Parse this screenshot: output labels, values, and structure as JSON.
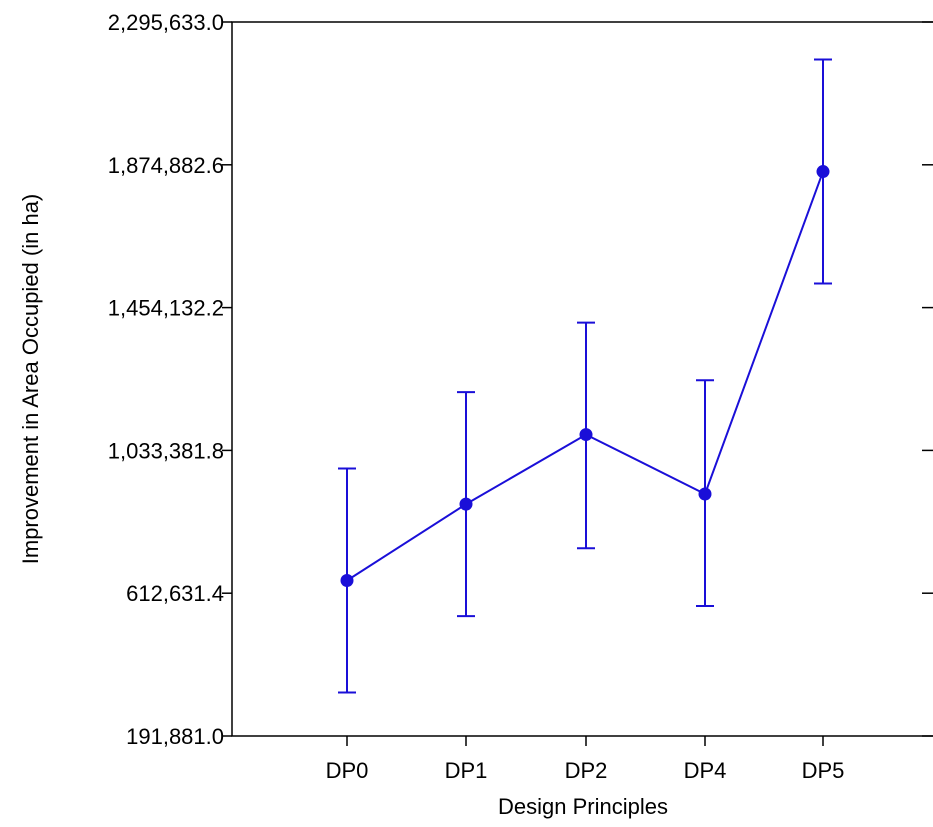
{
  "chart_data": {
    "type": "line",
    "xlabel": "Design Principles",
    "ylabel": "Improvement in Area Occupied (in ha)",
    "categories": [
      "DP0",
      "DP1",
      "DP2",
      "DP4",
      "DP5"
    ],
    "ylim": [
      191881.0,
      2295633.0
    ],
    "yticks": [
      191881.0,
      612631.4,
      1033381.8,
      1454132.2,
      1874882.6,
      2295633.0
    ],
    "ytick_labels": [
      "191,881.0",
      "612,631.4",
      "1,033,381.8",
      "1,454,132.2",
      "1,874,882.6",
      "2,295,633.0"
    ],
    "grid": false,
    "series": [
      {
        "values": [
          650000,
          875000,
          1080000,
          905000,
          1855000
        ],
        "error_lower": [
          320000,
          545000,
          745000,
          575000,
          1525000
        ],
        "error_upper": [
          980000,
          1205000,
          1410000,
          1240000,
          2185000
        ],
        "color": "#1a0fd8"
      }
    ]
  }
}
